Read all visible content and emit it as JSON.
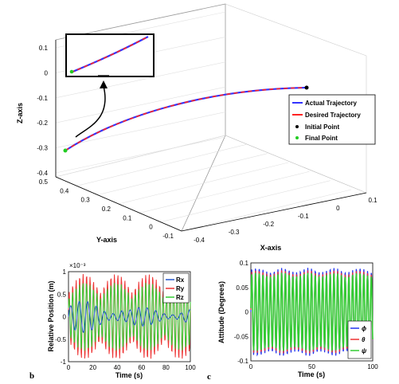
{
  "chart_data": [
    {
      "type": "line",
      "panel": "a",
      "xlabel": "X-axis",
      "ylabel": "Y-axis",
      "zlabel": "Z-axis",
      "xlim": [
        -0.4,
        0.1
      ],
      "ylim": [
        -0.1,
        0.5
      ],
      "zlim": [
        -0.4,
        0.1
      ],
      "x_ticks": [
        "-0.4",
        "-0.3",
        "-0.2",
        "-0.1",
        "0",
        "0.1"
      ],
      "y_ticks": [
        "-0.1",
        "0",
        "0.1",
        "0.2",
        "0.3",
        "0.4",
        "0.5"
      ],
      "z_ticks": [
        "-0.4",
        "-0.3",
        "-0.2",
        "-0.1",
        "0",
        "0.1"
      ],
      "grid": true,
      "legend_position": "right",
      "series": [
        {
          "name": "Actual Trajectory",
          "color": "#3333ff"
        },
        {
          "name": "Desired Trajectory",
          "color": "#ff2222"
        },
        {
          "name": "Initial Point",
          "color": "#000000",
          "marker": "dot"
        },
        {
          "name": "Final Point",
          "color": "#22cc22",
          "marker": "dot"
        }
      ],
      "inset": "zoomed view of trajectory near final point"
    },
    {
      "type": "line",
      "panel": "b",
      "xlabel": "Time (s)",
      "ylabel": "Relative Position (m)",
      "scale_label": "×10⁻³",
      "xlim": [
        0,
        100
      ],
      "ylim": [
        -1,
        1
      ],
      "x_ticks": [
        "0",
        "20",
        "40",
        "60",
        "80",
        "100"
      ],
      "y_ticks": [
        "1",
        "0.5",
        "0",
        "-0.5",
        "-1"
      ],
      "legend_position": "top-right",
      "series": [
        {
          "name": "Rx",
          "color": "#2255cc",
          "amplitude": 0.35
        },
        {
          "name": "Ry",
          "color": "#ee3333",
          "amplitude": 0.95
        },
        {
          "name": "Rz",
          "color": "#33cc33",
          "amplitude": 0.8
        }
      ]
    },
    {
      "type": "line",
      "panel": "c",
      "xlabel": "Time (s)",
      "ylabel": "Attitude (Degrees)",
      "xlim": [
        0,
        100
      ],
      "ylim": [
        -0.1,
        0.1
      ],
      "x_ticks": [
        "0",
        "50",
        "100"
      ],
      "y_ticks": [
        "0.1",
        "0.05",
        "0",
        "-0.05",
        "-0.1"
      ],
      "legend_position": "bottom-right",
      "series": [
        {
          "name": "ϕ",
          "color": "#2233ee",
          "amplitude": 0.09
        },
        {
          "name": "θ",
          "color": "#ee3333",
          "amplitude": 0.085
        },
        {
          "name": "ψ",
          "color": "#33cc33",
          "amplitude": 0.08
        }
      ]
    }
  ],
  "labels": {
    "panel_b": "b",
    "panel_c": "c"
  }
}
